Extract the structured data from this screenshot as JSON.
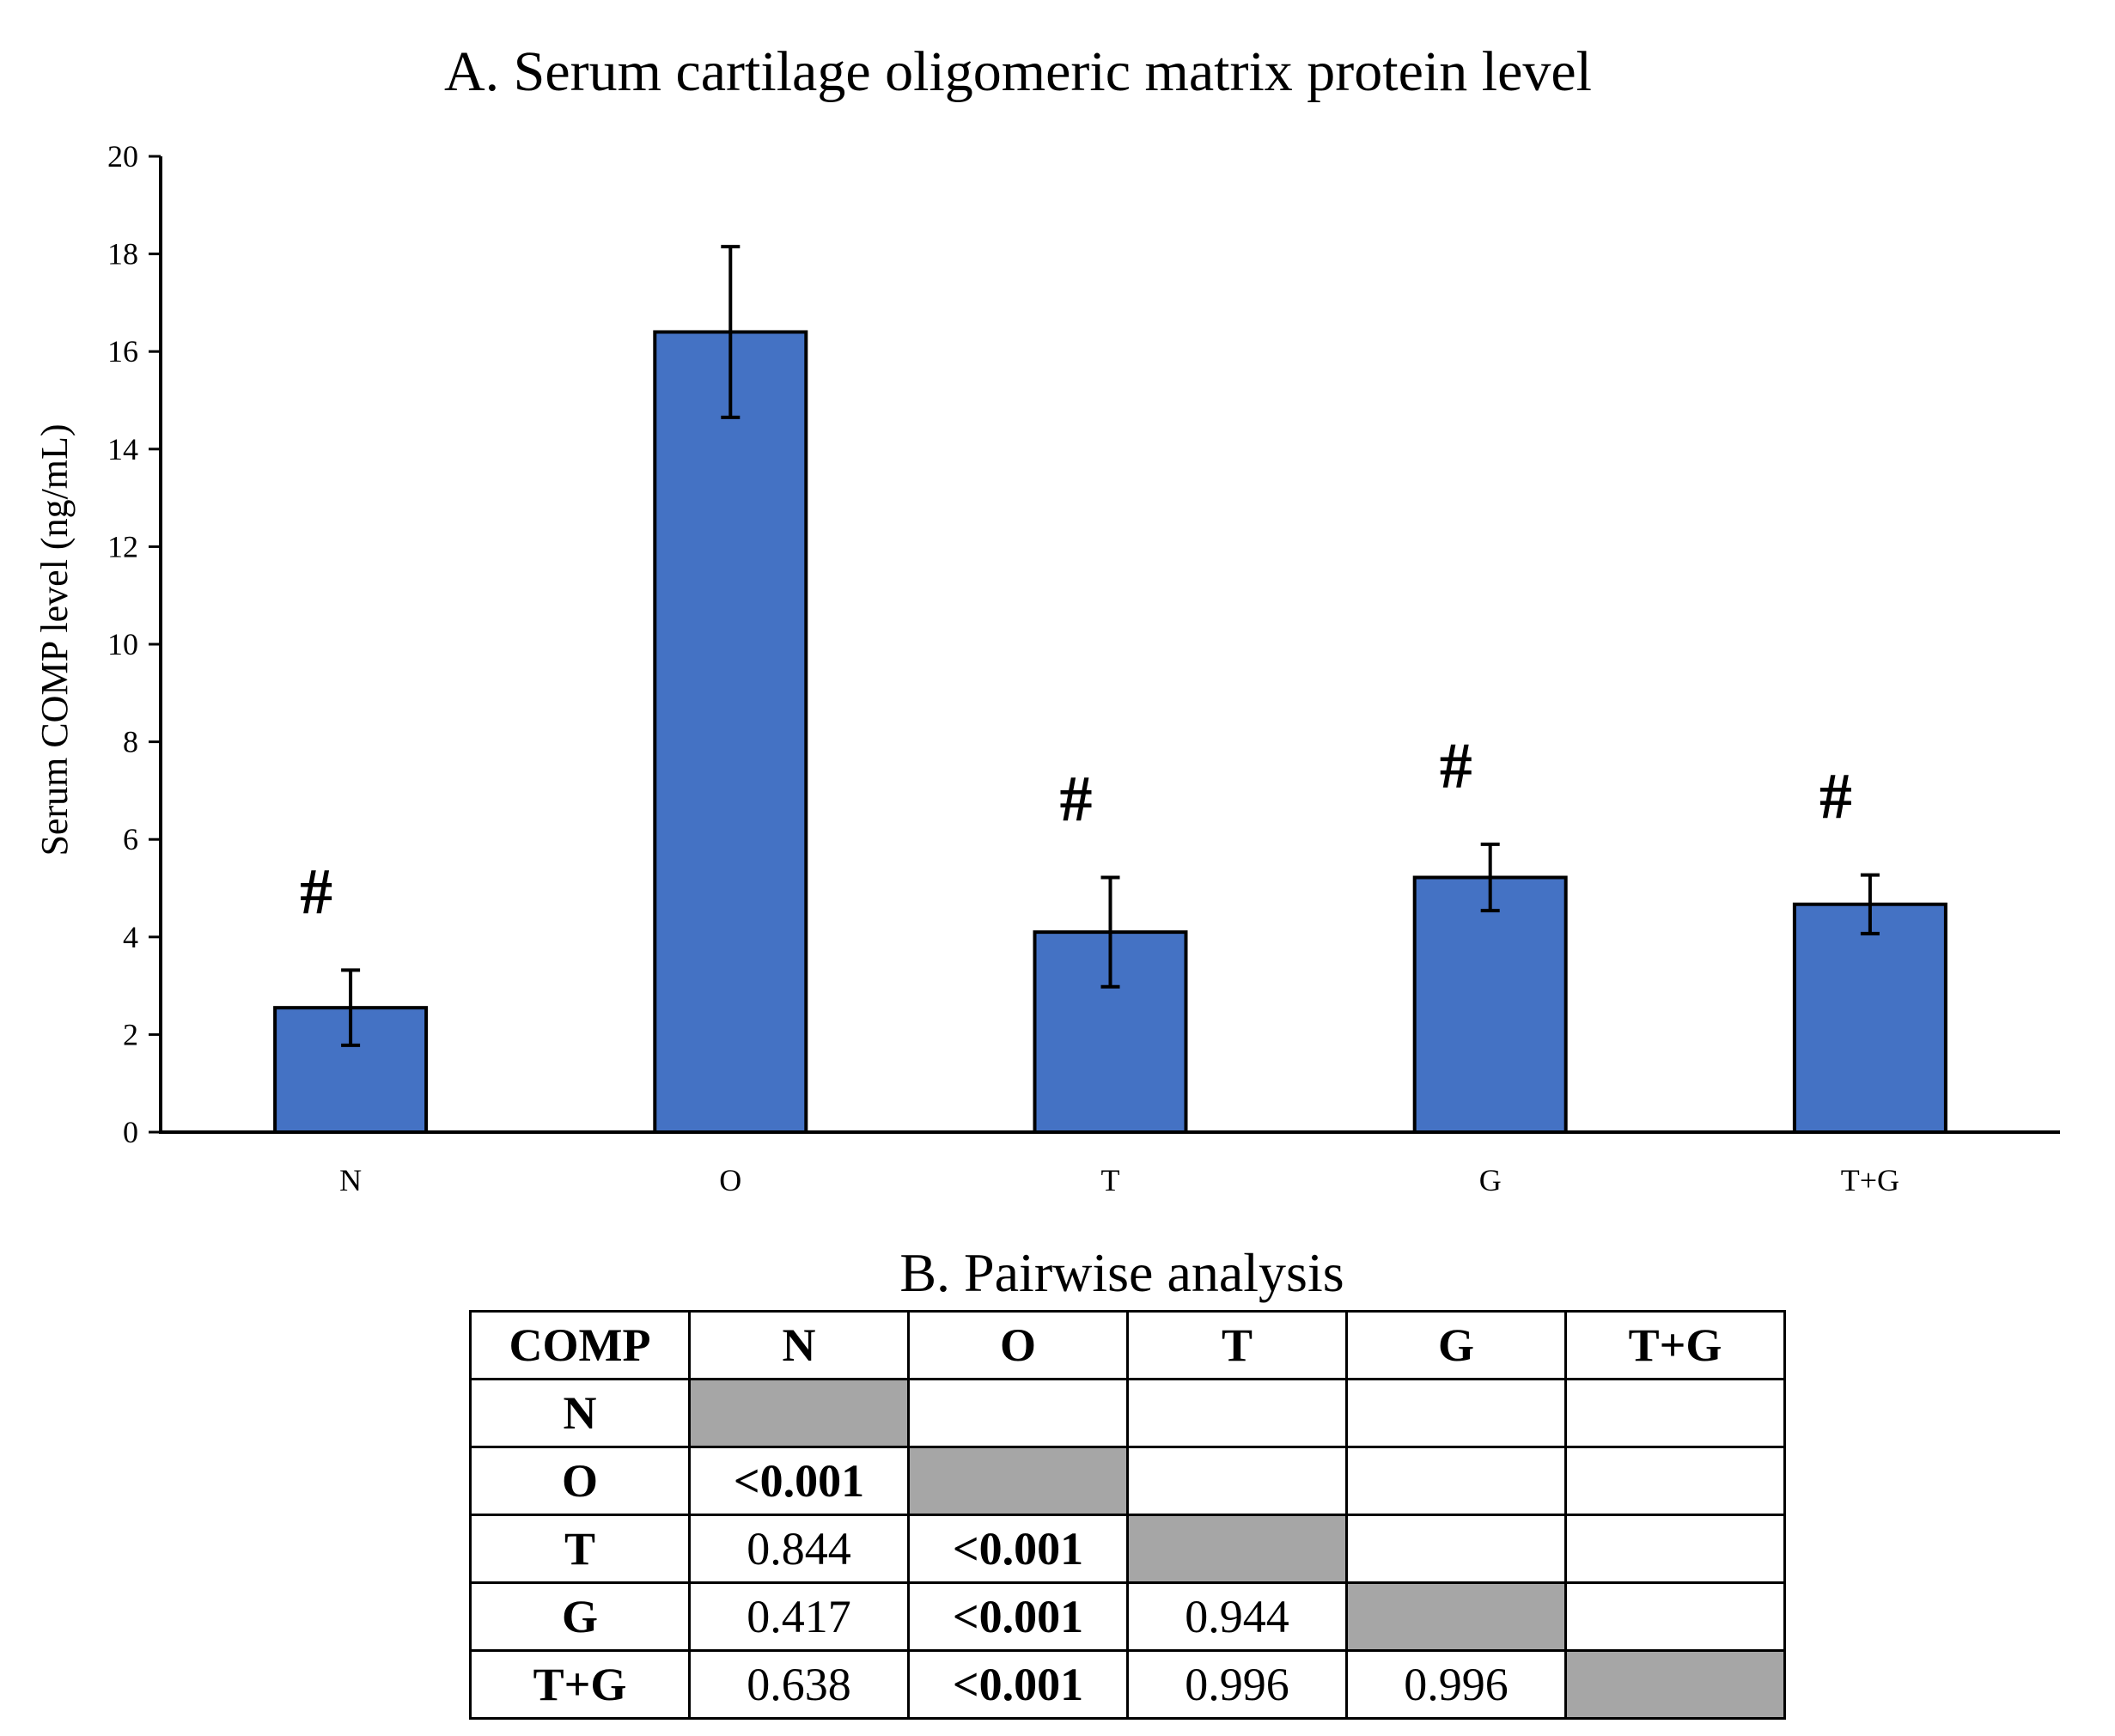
{
  "chart_data": {
    "type": "bar",
    "title": "A.  Serum cartilage oligomeric matrix protein level",
    "xlabel": "",
    "ylabel": "Serum COMP level (ng/mL)",
    "categories": [
      "N",
      "O",
      "T",
      "G",
      "T+G"
    ],
    "values": [
      2.55,
      16.4,
      4.1,
      5.22,
      4.67
    ],
    "error": [
      0.77,
      1.75,
      1.12,
      0.68,
      0.6
    ],
    "significance": [
      "#",
      "",
      "#",
      "#",
      "#"
    ],
    "ylim": [
      0,
      20
    ],
    "yticks": [
      0,
      2,
      4,
      6,
      8,
      10,
      12,
      14,
      16,
      18,
      20
    ],
    "bar_color": "#4472C4",
    "grid": false,
    "legend": "none"
  },
  "table": {
    "title": "B. Pairwise analysis",
    "corner": "COMP",
    "columns": [
      "N",
      "O",
      "T",
      "G",
      "T+G"
    ],
    "rows": [
      {
        "label": "N",
        "cells": [
          "",
          "",
          "",
          "",
          ""
        ]
      },
      {
        "label": "O",
        "cells": [
          "<0.001",
          "",
          "",
          "",
          ""
        ]
      },
      {
        "label": "T",
        "cells": [
          "0.844",
          "<0.001",
          "",
          "",
          ""
        ]
      },
      {
        "label": "G",
        "cells": [
          "0.417",
          "<0.001",
          "0.944",
          "",
          ""
        ]
      },
      {
        "label": "T+G",
        "cells": [
          "0.638",
          "<0.001",
          "0.996",
          "0.996",
          ""
        ]
      }
    ],
    "diagonal_color": "#a6a6a6"
  }
}
